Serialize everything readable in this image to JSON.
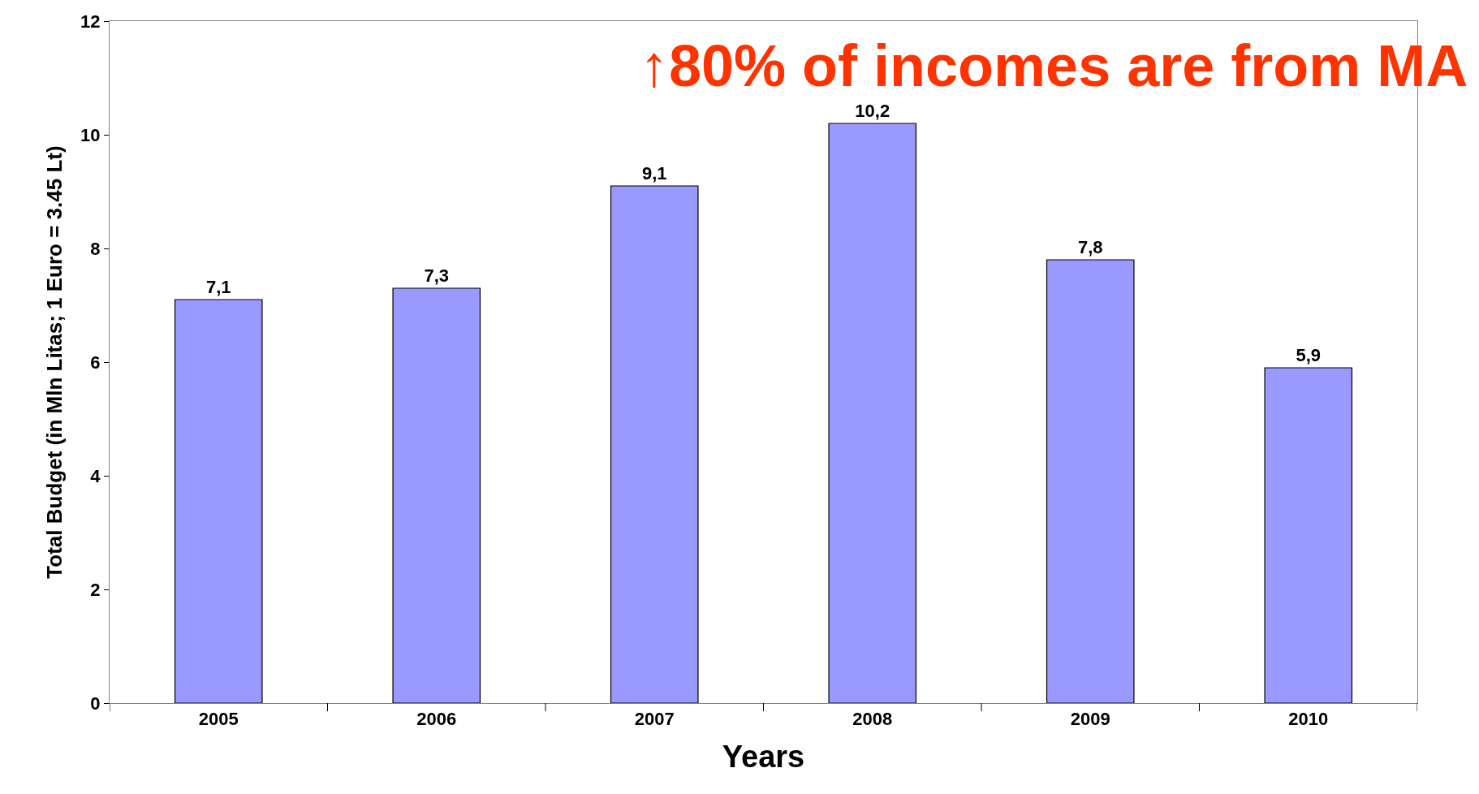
{
  "chart_data": {
    "type": "bar",
    "xlabel": "Years",
    "ylabel": "Total Budget (in Mln Litas; 1 Euro = 3.45 Lt)",
    "categories": [
      "2005",
      "2006",
      "2007",
      "2008",
      "2009",
      "2010"
    ],
    "values": [
      7.1,
      7.3,
      9.1,
      10.2,
      7.8,
      5.9
    ],
    "value_labels": [
      "7,1",
      "7,3",
      "9,1",
      "10,2",
      "7,8",
      "5,9"
    ],
    "color": "#9999ff",
    "ylim": [
      0,
      12
    ],
    "yticks": [
      0,
      2,
      4,
      6,
      8,
      10,
      12
    ],
    "legend": false,
    "annotations": [
      "↑80% of incomes are from MA"
    ]
  }
}
